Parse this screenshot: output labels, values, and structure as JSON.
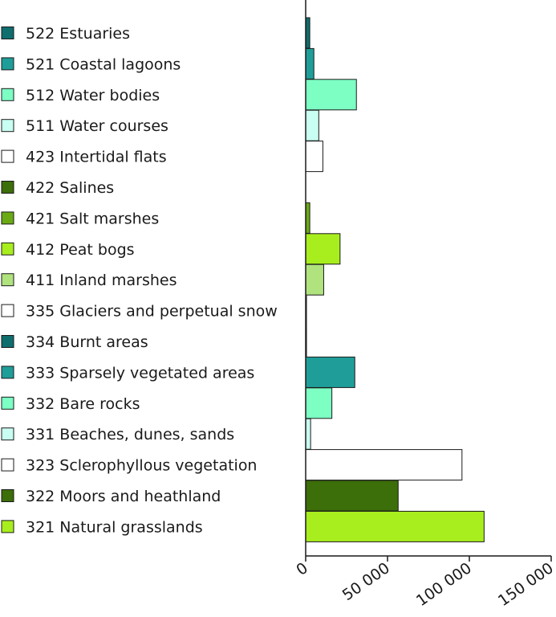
{
  "chart_data": {
    "type": "bar",
    "orientation": "horizontal",
    "categories": [
      "522 Estuaries",
      "521 Coastal lagoons",
      "512 Water bodies",
      "511 Water courses",
      "423 Intertidal flats",
      "422 Salines",
      "421 Salt marshes",
      "412 Peat bogs",
      "411 Inland marshes",
      "335 Glaciers and perpetual snow",
      "334 Burnt areas",
      "333 Sparsely vegetated areas",
      "332 Bare rocks",
      "331 Beaches, dunes, sands",
      "323 Sclerophyllous vegetation",
      "322 Moors and heathland",
      "321 Natural grasslands"
    ],
    "values": [
      2500,
      5000,
      31000,
      8000,
      10500,
      0,
      2500,
      21000,
      11000,
      500,
      500,
      30000,
      16000,
      3000,
      95500,
      56500,
      109000
    ],
    "colors": [
      "#0f6e6e",
      "#1f9e99",
      "#7dffc4",
      "#c8fff2",
      "#ffffff",
      "#3c6e09",
      "#6aaa14",
      "#a8ee1e",
      "#b0e37e",
      "#ffffff",
      "#0f6e6e",
      "#1f9e99",
      "#7dffc4",
      "#c8fff2",
      "#ffffff",
      "#3c6e09",
      "#a8ee1e"
    ],
    "xlim": [
      0,
      150000
    ],
    "xticks": [
      0,
      50000,
      100000,
      150000
    ],
    "xtick_labels": [
      "0",
      "50 000",
      "100 000",
      "150 000"
    ],
    "title": "",
    "xlabel": "",
    "ylabel": "",
    "grid": false,
    "legend": "none"
  }
}
